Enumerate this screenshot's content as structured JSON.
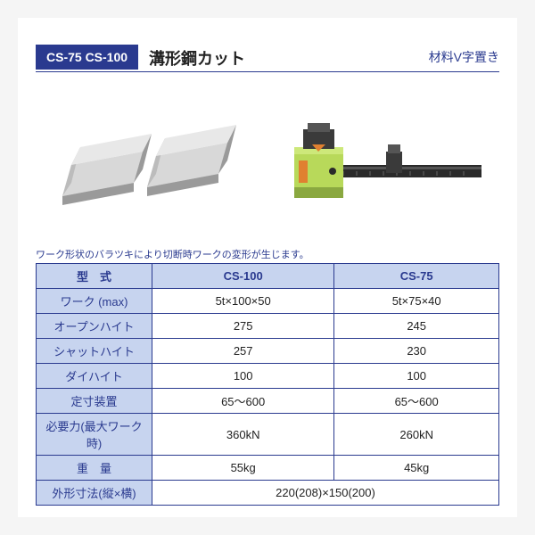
{
  "header": {
    "badge": "CS-75  CS-100",
    "title": "溝形鋼カット",
    "subtitle": "材料V字置き"
  },
  "note": "ワーク形状のバラツキにより切断時ワークの変形が生じます。",
  "table": {
    "columns": [
      "型　式",
      "CS-100",
      "CS-75"
    ],
    "rows": [
      [
        "ワーク (max)",
        "5t×100×50",
        "5t×75×40"
      ],
      [
        "オープンハイト",
        "275",
        "245"
      ],
      [
        "シャットハイト",
        "257",
        "230"
      ],
      [
        "ダイハイト",
        "100",
        "100"
      ],
      [
        "定寸装置",
        "65～600",
        "65～600"
      ],
      [
        "必要力(最大ワーク時)",
        "360kN",
        "260kN"
      ],
      [
        "重　量",
        "55kg",
        "45kg"
      ],
      [
        "外形寸法(縦×横)",
        {
          "colspan": 2,
          "value": "220(208)×150(200)"
        }
      ]
    ]
  },
  "colors": {
    "brand": "#2a3a8f",
    "header_bg": "#c7d4ef",
    "steel_light": "#d8d8d8",
    "steel_mid": "#bcbcbc",
    "steel_dark": "#9a9a9a",
    "machine_green": "#b8d95a",
    "machine_orange": "#e08030",
    "machine_dark": "#2a2a2a"
  }
}
